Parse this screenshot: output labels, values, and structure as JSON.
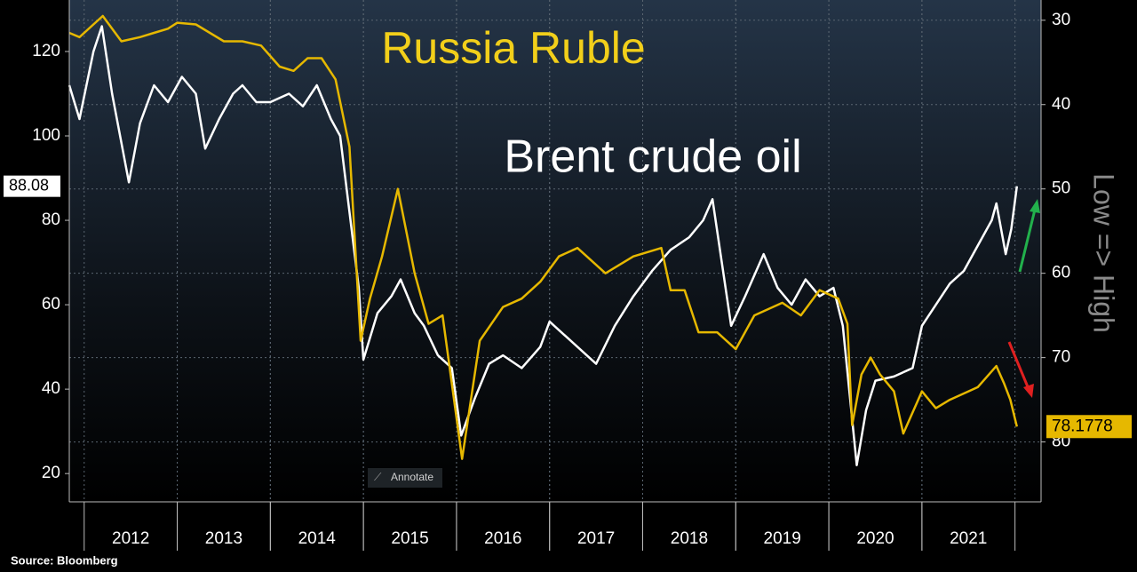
{
  "chart_data": {
    "type": "line",
    "annotations": {
      "left": "Russia Ruble",
      "right": "Brent crude oil"
    },
    "y2label": "Low => High",
    "source": "Source: Bloomberg",
    "button": "Annotate",
    "xlim": [
      2011.84,
      2022.28
    ],
    "xticks": [
      {
        "value": 2012.5,
        "label": "2012"
      },
      {
        "value": 2013.5,
        "label": "2013"
      },
      {
        "value": 2014.5,
        "label": "2014"
      },
      {
        "value": 2015.5,
        "label": "2015"
      },
      {
        "value": 2016.5,
        "label": "2016"
      },
      {
        "value": 2017.5,
        "label": "2017"
      },
      {
        "value": 2018.5,
        "label": "2018"
      },
      {
        "value": 2019.5,
        "label": "2019"
      },
      {
        "value": 2020.5,
        "label": "2020"
      },
      {
        "value": 2021.5,
        "label": "2021"
      }
    ],
    "ylim": [
      13.3,
      132.2
    ],
    "yticks": [
      20,
      40,
      60,
      80,
      100,
      120
    ],
    "y2lim": [
      27.6,
      87.1
    ],
    "y2ticks": [
      30,
      40,
      50,
      60,
      70,
      80
    ],
    "y2_inverted": true,
    "grid": true,
    "series": [
      {
        "name": "Brent crude oil",
        "color": "#ffffff",
        "axis": "y",
        "last_label": "88.08",
        "x": [
          2011.84,
          2011.95,
          2012.1,
          2012.19,
          2012.3,
          2012.48,
          2012.6,
          2012.75,
          2012.9,
          2013.05,
          2013.2,
          2013.3,
          2013.45,
          2013.6,
          2013.7,
          2013.85,
          2014.0,
          2014.2,
          2014.35,
          2014.5,
          2014.65,
          2014.75,
          2014.85,
          2014.95,
          2015.0,
          2015.15,
          2015.3,
          2015.4,
          2015.55,
          2015.65,
          2015.8,
          2015.95,
          2016.05,
          2016.2,
          2016.35,
          2016.5,
          2016.7,
          2016.9,
          2017.0,
          2017.2,
          2017.4,
          2017.5,
          2017.7,
          2017.9,
          2018.1,
          2018.3,
          2018.5,
          2018.65,
          2018.75,
          2018.85,
          2018.95,
          2019.1,
          2019.3,
          2019.45,
          2019.6,
          2019.75,
          2019.9,
          2020.05,
          2020.15,
          2020.3,
          2020.4,
          2020.5,
          2020.7,
          2020.9,
          2021.0,
          2021.15,
          2021.3,
          2021.45,
          2021.6,
          2021.75,
          2021.8,
          2021.9,
          2021.96,
          2022.02
        ],
        "values": [
          112,
          104,
          120,
          126,
          110,
          89,
          103,
          112,
          108,
          114,
          110,
          97,
          104,
          110,
          112,
          108,
          108,
          110,
          107,
          112,
          104,
          100,
          82,
          64,
          47,
          58,
          62,
          66,
          58,
          55,
          48,
          45,
          29,
          38,
          46,
          48,
          45,
          50,
          56,
          52,
          48,
          46,
          55,
          62,
          68,
          73,
          76,
          80,
          85,
          70,
          55,
          62,
          72,
          64,
          60,
          66,
          62,
          64,
          55,
          22,
          35,
          42,
          43,
          45,
          55,
          60,
          65,
          68,
          74,
          80,
          84,
          72,
          78,
          88.08
        ]
      },
      {
        "name": "Russia Ruble",
        "color": "#e6b800",
        "axis": "y2",
        "last_label": "78.1778",
        "x": [
          2011.84,
          2011.95,
          2012.1,
          2012.2,
          2012.3,
          2012.4,
          2012.6,
          2012.75,
          2012.9,
          2013.0,
          2013.2,
          2013.5,
          2013.7,
          2013.9,
          2014.1,
          2014.25,
          2014.4,
          2014.55,
          2014.7,
          2014.85,
          2014.97,
          2015.07,
          2015.2,
          2015.37,
          2015.55,
          2015.7,
          2015.85,
          2016.06,
          2016.25,
          2016.5,
          2016.7,
          2016.9,
          2017.1,
          2017.3,
          2017.6,
          2017.9,
          2018.2,
          2018.3,
          2018.45,
          2018.6,
          2018.8,
          2019.0,
          2019.2,
          2019.5,
          2019.7,
          2019.9,
          2020.1,
          2020.2,
          2020.25,
          2020.35,
          2020.45,
          2020.55,
          2020.7,
          2020.8,
          2021.0,
          2021.15,
          2021.3,
          2021.5,
          2021.6,
          2021.8,
          2021.88,
          2021.95,
          2022.02
        ],
        "values": [
          31.5,
          32,
          30.5,
          29.5,
          31,
          32.5,
          32,
          31.5,
          31,
          30.3,
          30.5,
          32.5,
          32.5,
          33,
          35.5,
          36,
          34.5,
          34.5,
          37,
          45,
          68,
          63,
          58,
          50,
          60,
          66,
          65,
          82,
          68,
          64,
          63,
          61,
          58,
          57,
          60,
          58,
          57,
          62,
          62,
          67,
          67,
          69,
          65,
          63.5,
          65,
          62,
          63,
          66,
          78,
          72,
          70,
          72,
          74,
          79,
          74,
          76,
          75,
          74,
          73.5,
          71,
          73,
          75,
          78.1778
        ]
      }
    ]
  }
}
